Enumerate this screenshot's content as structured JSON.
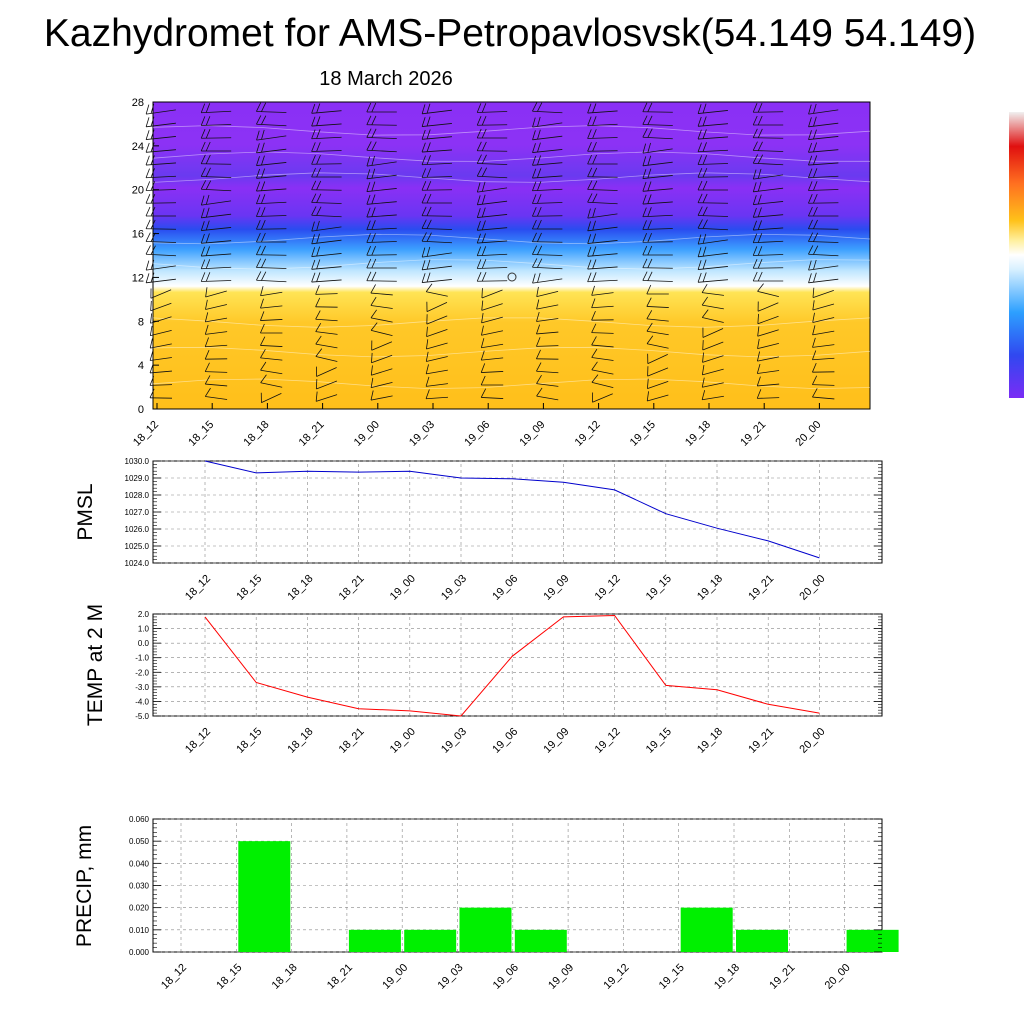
{
  "header": {
    "title": "Kazhydromet for AMS-Petropavlosvsk(54.149 54.149)",
    "subtitle": "18 March 2026"
  },
  "colors": {
    "warm": "#ffc21a",
    "warm_light": "#ffd84a",
    "cool_blue": "#3ca0ff",
    "deep_violet": "#7a2cf5",
    "pmsl_line": "#0000cc",
    "temp_line": "#ff0000",
    "precip_bar": "#00f000"
  },
  "chart_data": [
    {
      "type": "heatmap",
      "name": "vertical-section",
      "y_ticks": [
        "0",
        "4",
        "8",
        "12",
        "16",
        "20",
        "24",
        "28"
      ],
      "ylim": [
        0,
        28
      ],
      "x_ticks": [
        "18_12",
        "18_15",
        "18_18",
        "18_21",
        "19_00",
        "19_03",
        "19_06",
        "19_09",
        "19_12",
        "19_15",
        "19_18",
        "19_21",
        "20_00"
      ],
      "bands": [
        {
          "from": 0,
          "to": 11,
          "color": "#ffc21a"
        },
        {
          "from": 11,
          "to": 14.5,
          "color": "#ccecff"
        },
        {
          "from": 14.5,
          "to": 17.5,
          "color": "#3c8cff"
        },
        {
          "from": 17.5,
          "to": 28,
          "color": "#7a2cf5"
        }
      ]
    },
    {
      "type": "line",
      "name": "pmsl",
      "ylabel": "PMSL",
      "ylim": [
        1024,
        1030
      ],
      "y_ticks": [
        "1024.0",
        "1025.0",
        "1026.0",
        "1027.0",
        "1028.0",
        "1029.0",
        "1030.0"
      ],
      "categories": [
        "18_12",
        "18_15",
        "18_18",
        "18_21",
        "19_00",
        "19_03",
        "19_06",
        "19_09",
        "19_12",
        "19_15",
        "19_18",
        "19_21",
        "20_00"
      ],
      "values": [
        1030.0,
        1029.3,
        1029.4,
        1029.35,
        1029.4,
        1029.0,
        1028.95,
        1028.75,
        1028.3,
        1026.9,
        1026.05,
        1025.3,
        1024.3
      ]
    },
    {
      "type": "line",
      "name": "temp",
      "ylabel": "TEMP at 2 M",
      "ylim": [
        -5,
        2
      ],
      "y_ticks": [
        "-5.0",
        "-4.0",
        "-3.0",
        "-2.0",
        "-1.0",
        "0.0",
        "1.0",
        "2.0"
      ],
      "categories": [
        "18_12",
        "18_15",
        "18_18",
        "18_21",
        "19_00",
        "19_03",
        "19_06",
        "19_09",
        "19_12",
        "19_15",
        "19_18",
        "19_21",
        "20_00"
      ],
      "values": [
        1.8,
        -2.7,
        -3.7,
        -4.5,
        -4.65,
        -5.0,
        -0.9,
        1.8,
        1.9,
        -2.9,
        -3.2,
        -4.2,
        -4.8
      ]
    },
    {
      "type": "bar",
      "name": "precip",
      "ylabel": "PRECIP, mm",
      "ylim": [
        0,
        0.06
      ],
      "y_ticks": [
        "0.000",
        "0.010",
        "0.020",
        "0.030",
        "0.040",
        "0.050",
        "0.060"
      ],
      "categories": [
        "18_12",
        "18_15",
        "18_18",
        "18_21",
        "19_00",
        "19_03",
        "19_06",
        "19_09",
        "19_12",
        "19_15",
        "19_18",
        "19_21",
        "20_00"
      ],
      "values": [
        0,
        0.05,
        0,
        0.01,
        0.01,
        0.02,
        0.01,
        0,
        0,
        0.02,
        0.01,
        0,
        0.01
      ]
    }
  ]
}
